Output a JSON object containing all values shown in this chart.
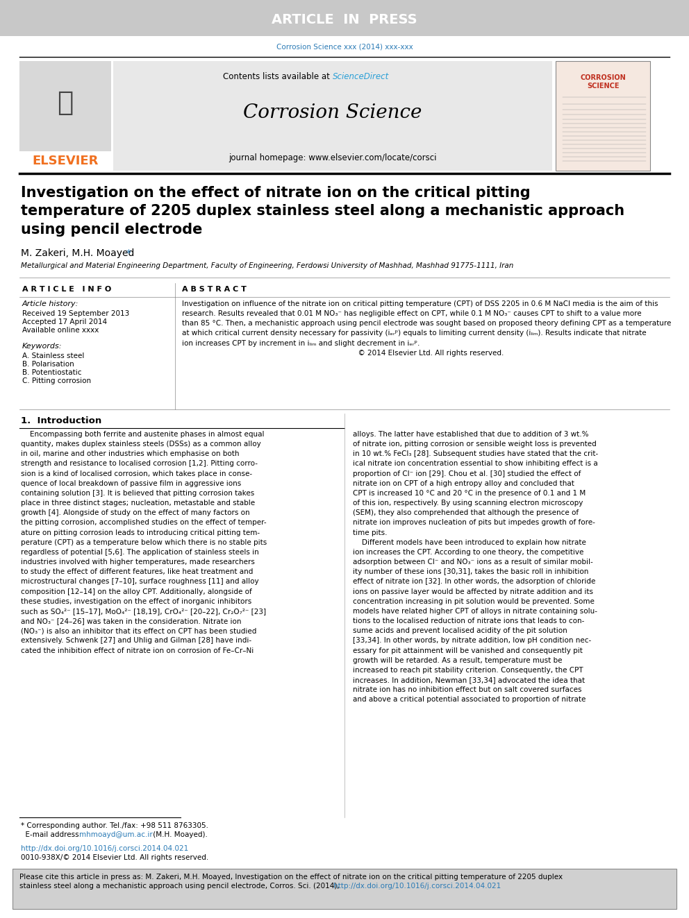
{
  "article_in_press_bg": "#c8c8c8",
  "article_in_press_text": "ARTICLE  IN  PRESS",
  "journal_ref": "Corrosion Science xxx (2014) xxx-xxx",
  "journal_ref_color": "#2a7ab5",
  "sciencedirect_color": "#2a9fd6",
  "journal_name": "Corrosion Science",
  "journal_homepage": "journal homepage: www.elsevier.com/locate/corsci",
  "elsevier_color": "#f07020",
  "header_bg": "#e8e8e8",
  "title": "Investigation on the effect of nitrate ion on the critical pitting\ntemperature of 2205 duplex stainless steel along a mechanistic approach\nusing pencil electrode",
  "authors_plain": "M. Zakeri, M.H. Moayed ",
  "affiliation": "Metallurgical and Material Engineering Department, Faculty of Engineering, Ferdowsi University of Mashhad, Mashhad 91775-1111, Iran",
  "article_info_header": "A R T I C L E   I N F O",
  "abstract_header": "A B S T R A C T",
  "article_history_label": "Article history:",
  "received_text": "Received 19 September 2013",
  "accepted_text": "Accepted 17 April 2014",
  "available_text": "Available online xxxx",
  "keywords_label": "Keywords:",
  "keyword_a_stainless": "A. Stainless steel",
  "keyword_b_polar": "B. Polarisation",
  "keyword_b_potentio": "B. Potentiostatic",
  "keyword_c_pitting": "C. Pitting corrosion",
  "abstract_display": "Investigation on influence of the nitrate ion on critical pitting temperature (CPT) of DSS 2205 in 0.6 M NaCl media is the aim of this\nresearch. Results revealed that 0.01 M NO₃⁻ has negligible effect on CPT, while 0.1 M NO₃⁻ causes CPT to shift to a value more\nthan 85 °C. Then, a mechanistic approach using pencil electrode was sought based on proposed theory defining CPT as a temperature\nat which critical current density necessary for passivity (iₑᵣᵖ) equals to limiting current density (iₗᵢₘ). Results indicate that nitrate\nion increases CPT by increment in iₗᵢₘ and slight decrement in iₑᵣᵖ.\n                                                                              © 2014 Elsevier Ltd. All rights reserved.",
  "intro_header": "1.  Introduction",
  "intro_col1": "    Encompassing both ferrite and austenite phases in almost equal\nquantity, makes duplex stainless steels (DSSs) as a common alloy\nin oil, marine and other industries which emphasise on both\nstrength and resistance to localised corrosion [1,2]. Pitting corro-\nsion is a kind of localised corrosion, which takes place in conse-\nquence of local breakdown of passive film in aggressive ions\ncontaining solution [3]. It is believed that pitting corrosion takes\nplace in three distinct stages; nucleation, metastable and stable\ngrowth [4]. Alongside of study on the effect of many factors on\nthe pitting corrosion, accomplished studies on the effect of temper-\nature on pitting corrosion leads to introducing critical pitting tem-\nperature (CPT) as a temperature below which there is no stable pits\nregardless of potential [5,6]. The application of stainless steels in\nindustries involved with higher temperatures, made researchers\nto study the effect of different features, like heat treatment and\nmicrostructural changes [7–10], surface roughness [11] and alloy\ncomposition [12–14] on the alloy CPT. Additionally, alongside of\nthese studies, investigation on the effect of inorganic inhibitors\nsuch as SO₄²⁻ [15–17], MoO₄²⁻ [18,19], CrO₄²⁻ [20–22], Cr₂O₇²⁻ [23]\nand NO₃⁻ [24–26] was taken in the consideration. Nitrate ion\n(NO₃⁻) is also an inhibitor that its effect on CPT has been studied\nextensively. Schwenk [27] and Uhlig and Gilman [28] have indi-\ncated the inhibition effect of nitrate ion on corrosion of Fe–Cr–Ni",
  "intro_col2": "alloys. The latter have established that due to addition of 3 wt.%\nof nitrate ion, pitting corrosion or sensible weight loss is prevented\nin 10 wt.% FeCl₃ [28]. Subsequent studies have stated that the crit-\nical nitrate ion concentration essential to show inhibiting effect is a\nproportion of Cl⁻ ion [29]. Chou et al. [30] studied the effect of\nnitrate ion on CPT of a high entropy alloy and concluded that\nCPT is increased 10 °C and 20 °C in the presence of 0.1 and 1 M\nof this ion, respectively. By using scanning electron microscopy\n(SEM), they also comprehended that although the presence of\nnitrate ion improves nucleation of pits but impedes growth of fore-\ntime pits.\n    Different models have been introduced to explain how nitrate\nion increases the CPT. According to one theory, the competitive\nadsorption between Cl⁻ and NO₃⁻ ions as a result of similar mobil-\nity number of these ions [30,31], takes the basic roll in inhibition\neffect of nitrate ion [32]. In other words, the adsorption of chloride\nions on passive layer would be affected by nitrate addition and its\nconcentration increasing in pit solution would be prevented. Some\nmodels have related higher CPT of alloys in nitrate containing solu-\ntions to the localised reduction of nitrate ions that leads to con-\nsume acids and prevent localised acidity of the pit solution\n[33,34]. In other words, by nitrate addition, low pH condition nec-\nessary for pit attainment will be vanished and consequently pit\ngrowth will be retarded. As a result, temperature must be\nincreased to reach pit stability criterion. Consequently, the CPT\nincreases. In addition, Newman [33,34] advocated the idea that\nnitrate ion has no inhibition effect but on salt covered surfaces\nand above a critical potential associated to proportion of nitrate",
  "doi_text": "http://dx.doi.org/10.1016/j.corsci.2014.04.021",
  "doi_color": "#2a7ab5",
  "issn_text": "0010-938X/© 2014 Elsevier Ltd. All rights reserved.",
  "cite_line1": "Please cite this article in press as: M. Zakeri, M.H. Moayed, Investigation on the effect of nitrate ion on the critical pitting temperature of 2205 duplex",
  "cite_line2": "stainless steel along a mechanistic approach using pencil electrode, Corros. Sci. (2014), ",
  "cite_link": "http://dx.doi.org/10.1016/j.corsci.2014.04.021",
  "cite_box_bg": "#d0d0d0",
  "bg_color": "#ffffff"
}
